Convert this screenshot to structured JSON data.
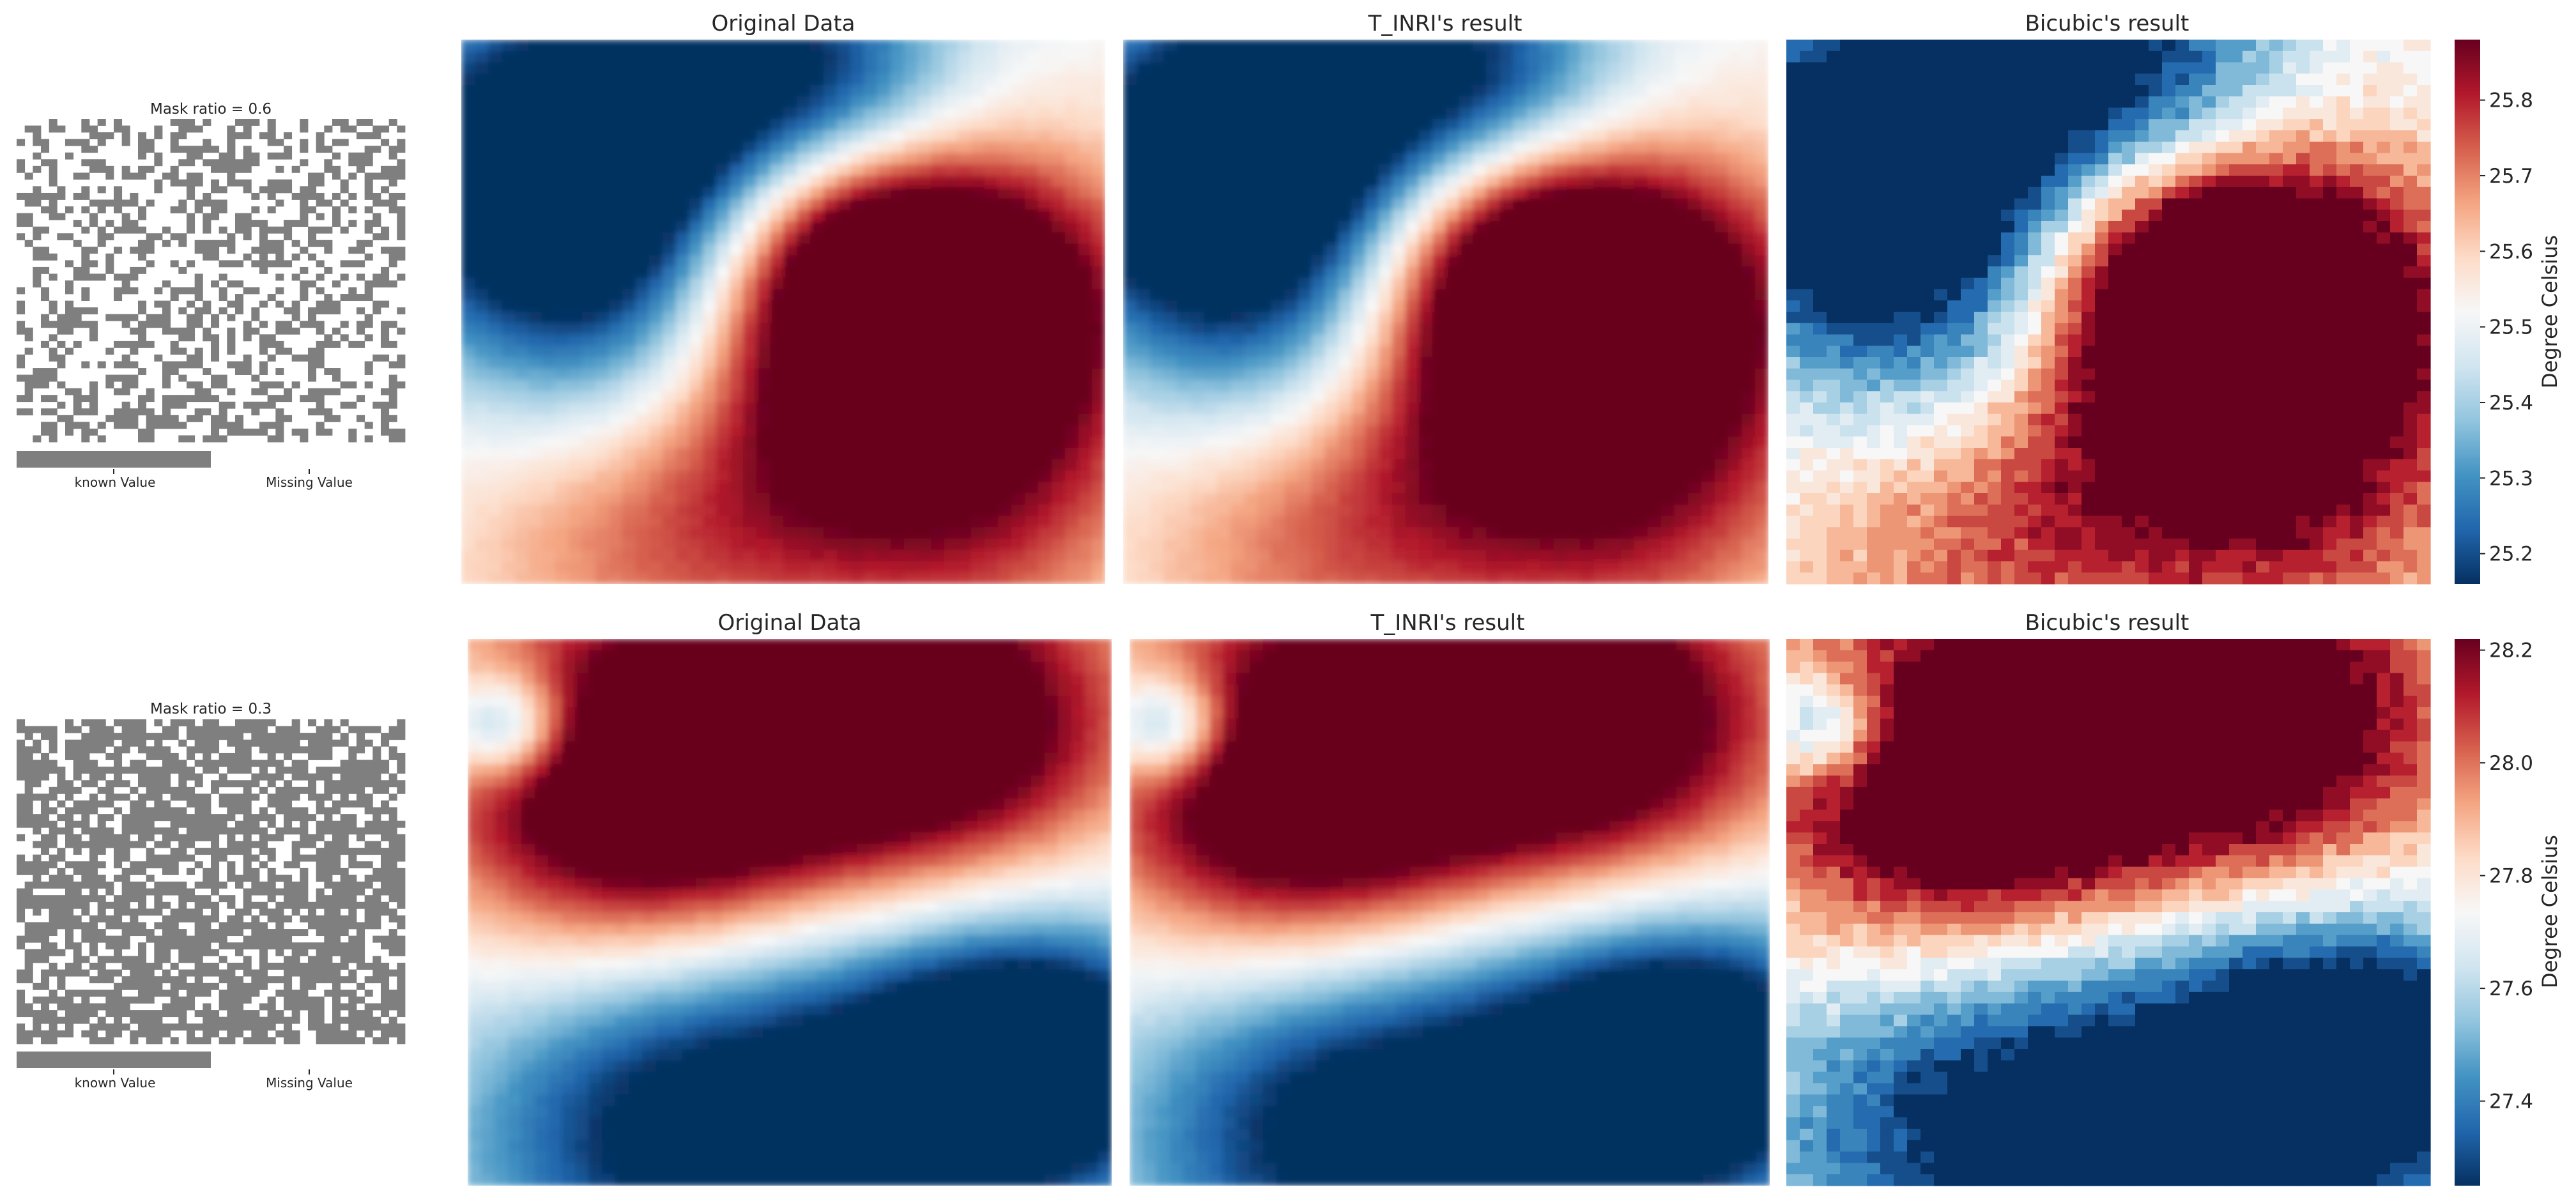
{
  "chart_data": [
    {
      "type": "heatmap",
      "row": 0,
      "mask": {
        "title": "Mask ratio = 0.6",
        "ratio": 0.6,
        "legend": [
          "known Value",
          "Missing Value"
        ],
        "colors": {
          "known": "#7f7f7f",
          "missing": "#ffffff"
        }
      },
      "panels": [
        {
          "title": "Original Data",
          "style": "smooth"
        },
        {
          "title": "T_INRI's result",
          "style": "smooth"
        },
        {
          "title": "Bicubic's result",
          "style": "blocky"
        }
      ],
      "colorbar": {
        "colormap": "RdBu_r",
        "label": "Degree Celsius",
        "range": [
          25.16,
          25.88
        ],
        "ticks": [
          "25.2",
          "25.3",
          "25.4",
          "25.5",
          "25.6",
          "25.7",
          "25.8"
        ]
      },
      "field_features": [
        {
          "kind": "warm",
          "x": 0.55,
          "y": 0.55,
          "strength": 1.0,
          "radius": 0.22
        },
        {
          "kind": "warm",
          "x": 0.82,
          "y": 0.48,
          "strength": 0.9,
          "radius": 0.2
        },
        {
          "kind": "warm",
          "x": 0.62,
          "y": 0.38,
          "strength": 0.7,
          "radius": 0.15
        },
        {
          "kind": "warm",
          "x": 0.3,
          "y": 0.88,
          "strength": 0.55,
          "radius": 0.22
        },
        {
          "kind": "warm",
          "x": 0.78,
          "y": 0.85,
          "strength": 0.6,
          "radius": 0.22
        },
        {
          "kind": "cold",
          "x": 0.1,
          "y": 0.25,
          "strength": 1.0,
          "radius": 0.2
        },
        {
          "kind": "cold",
          "x": 0.35,
          "y": 0.12,
          "strength": 0.9,
          "radius": 0.22
        },
        {
          "kind": "cold",
          "x": 0.28,
          "y": 0.55,
          "strength": 0.85,
          "radius": 0.2
        },
        {
          "kind": "cold",
          "x": 0.6,
          "y": 0.08,
          "strength": 0.5,
          "radius": 0.15
        }
      ]
    },
    {
      "type": "heatmap",
      "row": 1,
      "mask": {
        "title": "Mask ratio = 0.3",
        "ratio": 0.3,
        "legend": [
          "known Value",
          "Missing Value"
        ],
        "colors": {
          "known": "#7f7f7f",
          "missing": "#ffffff"
        }
      },
      "panels": [
        {
          "title": "Original Data",
          "style": "smooth"
        },
        {
          "title": "T_INRI's result",
          "style": "smooth"
        },
        {
          "title": "Bicubic's result",
          "style": "blocky"
        }
      ],
      "colorbar": {
        "colormap": "RdBu_r",
        "label": "Degree Celsius",
        "range": [
          27.25,
          28.22
        ],
        "ticks": [
          "27.4",
          "27.6",
          "27.8",
          "28.0",
          "28.2"
        ]
      },
      "field_features": [
        {
          "kind": "warm",
          "x": 0.45,
          "y": 0.22,
          "strength": 1.0,
          "radius": 0.3
        },
        {
          "kind": "warm",
          "x": 0.75,
          "y": 0.18,
          "strength": 0.9,
          "radius": 0.22
        },
        {
          "kind": "warm",
          "x": 0.25,
          "y": 0.3,
          "strength": 0.8,
          "radius": 0.2
        },
        {
          "kind": "cold",
          "x": 0.06,
          "y": 0.16,
          "strength": 0.9,
          "radius": 0.07
        },
        {
          "kind": "cold",
          "x": 0.68,
          "y": 0.72,
          "strength": 0.9,
          "radius": 0.3
        },
        {
          "kind": "cold",
          "x": 0.88,
          "y": 0.78,
          "strength": 1.0,
          "radius": 0.16
        },
        {
          "kind": "cold",
          "x": 0.3,
          "y": 0.9,
          "strength": 0.8,
          "radius": 0.25
        }
      ]
    }
  ]
}
